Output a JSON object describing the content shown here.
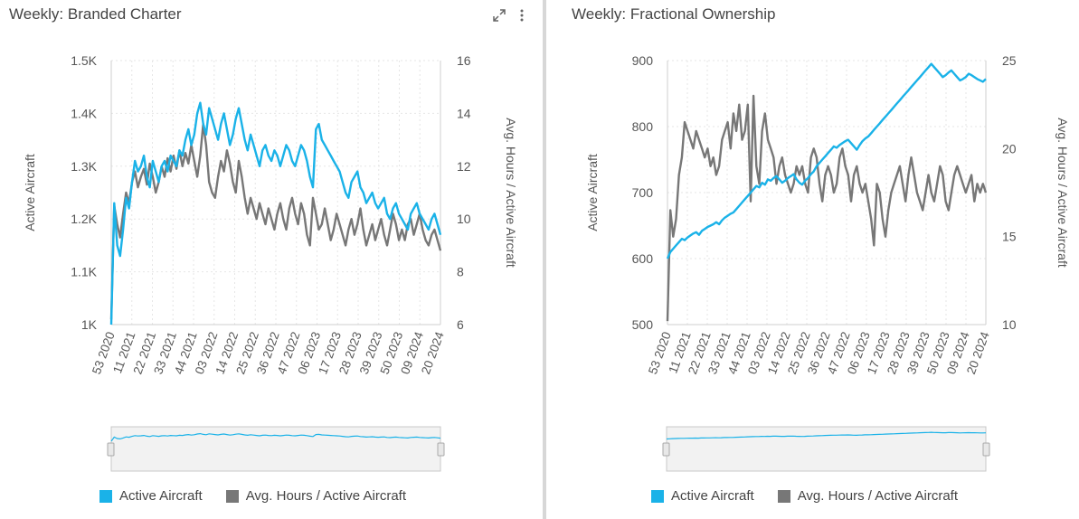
{
  "panels": [
    {
      "title": "Weekly: Branded Charter",
      "tools": {
        "expand_icon": "expand-icon",
        "menu_icon": "more-vert-icon"
      },
      "legend": [
        {
          "label": "Active Aircraft",
          "color": "#1ab2e8"
        },
        {
          "label": "Avg. Hours / Active Aircraft",
          "color": "#777777"
        }
      ]
    },
    {
      "title": "Weekly: Fractional Ownership",
      "legend": [
        {
          "label": "Active Aircraft",
          "color": "#1ab2e8"
        },
        {
          "label": "Avg. Hours / Active Aircraft",
          "color": "#777777"
        }
      ]
    }
  ],
  "chart_data": [
    {
      "type": "line",
      "title": "Weekly: Branded Charter",
      "x_tick_labels": [
        "53 2020",
        "11 2021",
        "22 2021",
        "33 2021",
        "44 2021",
        "03 2022",
        "14 2022",
        "25 2022",
        "36 2022",
        "47 2022",
        "06 2023",
        "17 2023",
        "28 2023",
        "39 2023",
        "50 2023",
        "09 2024",
        "20 2024"
      ],
      "ylabel_left": "Active Aircraft",
      "ylabel_right": "Avg. Hours / Active Aircraft",
      "y_left_ticks": [
        "1K",
        "1.1K",
        "1.2K",
        "1.3K",
        "1.4K",
        "1.5K"
      ],
      "y_right_ticks": [
        "6",
        "8",
        "10",
        "12",
        "14",
        "16"
      ],
      "ylim_left": [
        1000,
        1500
      ],
      "ylim_right": [
        6,
        16
      ],
      "grid": true,
      "legend_position": "bottom",
      "navigator": true,
      "series": [
        {
          "name": "Active Aircraft",
          "axis": "left",
          "color": "#1ab2e8",
          "values": [
            1000,
            1230,
            1150,
            1130,
            1180,
            1240,
            1220,
            1270,
            1310,
            1290,
            1300,
            1320,
            1280,
            1260,
            1310,
            1290,
            1270,
            1300,
            1310,
            1290,
            1320,
            1310,
            1300,
            1330,
            1320,
            1350,
            1370,
            1340,
            1360,
            1400,
            1420,
            1380,
            1360,
            1410,
            1390,
            1370,
            1350,
            1380,
            1400,
            1370,
            1340,
            1360,
            1390,
            1410,
            1380,
            1350,
            1330,
            1360,
            1340,
            1320,
            1300,
            1330,
            1340,
            1320,
            1310,
            1330,
            1320,
            1300,
            1320,
            1340,
            1330,
            1310,
            1300,
            1320,
            1340,
            1330,
            1310,
            1280,
            1260,
            1370,
            1380,
            1350,
            1340,
            1330,
            1320,
            1310,
            1300,
            1290,
            1270,
            1250,
            1240,
            1270,
            1280,
            1290,
            1260,
            1250,
            1230,
            1240,
            1250,
            1230,
            1220,
            1230,
            1240,
            1210,
            1200,
            1220,
            1230,
            1210,
            1200,
            1190,
            1180,
            1210,
            1220,
            1230,
            1210,
            1200,
            1190,
            1180,
            1200,
            1210,
            1190,
            1170
          ]
        },
        {
          "name": "Avg. Hours / Active Aircraft",
          "axis": "right",
          "color": "#777777",
          "values": [
            6.2,
            10.5,
            9.8,
            9.3,
            10.2,
            11.0,
            10.6,
            11.4,
            11.8,
            11.2,
            11.6,
            11.9,
            11.3,
            12.1,
            11.6,
            11.0,
            11.4,
            12.0,
            11.6,
            12.3,
            11.8,
            12.4,
            11.9,
            12.6,
            12.0,
            12.5,
            12.1,
            12.8,
            12.2,
            11.6,
            12.4,
            13.6,
            12.8,
            11.4,
            11.0,
            10.8,
            11.6,
            12.2,
            11.8,
            12.6,
            12.1,
            11.4,
            11.0,
            12.2,
            11.6,
            10.8,
            10.2,
            10.8,
            10.4,
            10.0,
            10.6,
            10.2,
            9.8,
            10.4,
            10.0,
            9.6,
            10.2,
            10.6,
            10.0,
            9.6,
            10.4,
            10.8,
            10.2,
            9.8,
            10.6,
            10.2,
            9.4,
            9.0,
            10.8,
            10.2,
            9.6,
            9.8,
            10.4,
            9.8,
            9.2,
            9.6,
            10.2,
            9.8,
            9.4,
            9.0,
            9.6,
            10.0,
            9.4,
            9.8,
            10.4,
            9.6,
            9.0,
            9.4,
            9.8,
            9.2,
            9.6,
            10.0,
            9.4,
            9.0,
            9.6,
            10.2,
            9.8,
            9.2,
            9.6,
            9.2,
            9.8,
            10.0,
            9.4,
            9.8,
            10.2,
            9.6,
            9.2,
            9.0,
            9.4,
            9.6,
            9.2,
            8.8
          ]
        }
      ]
    },
    {
      "type": "line",
      "title": "Weekly: Fractional Ownership",
      "x_tick_labels": [
        "53 2020",
        "11 2021",
        "22 2021",
        "33 2021",
        "44 2021",
        "03 2022",
        "14 2022",
        "25 2022",
        "36 2022",
        "47 2022",
        "06 2023",
        "17 2023",
        "28 2023",
        "39 2023",
        "50 2023",
        "09 2024",
        "20 2024"
      ],
      "ylabel_left": "Active Aircraft",
      "ylabel_right": "Avg. Hours / Active Aircraft",
      "y_left_ticks": [
        "500",
        "600",
        "700",
        "800",
        "900"
      ],
      "y_right_ticks": [
        "10",
        "15",
        "20",
        "25"
      ],
      "ylim_left": [
        500,
        900
      ],
      "ylim_right": [
        10,
        25
      ],
      "grid": true,
      "legend_position": "bottom",
      "navigator": true,
      "series": [
        {
          "name": "Active Aircraft",
          "axis": "left",
          "color": "#1ab2e8",
          "values": [
            600,
            610,
            615,
            620,
            625,
            630,
            628,
            632,
            635,
            638,
            640,
            636,
            642,
            645,
            648,
            650,
            652,
            655,
            652,
            658,
            662,
            665,
            668,
            670,
            675,
            680,
            685,
            690,
            695,
            700,
            705,
            710,
            708,
            715,
            712,
            720,
            718,
            722,
            725,
            720,
            715,
            718,
            722,
            725,
            728,
            720,
            715,
            712,
            718,
            722,
            728,
            732,
            740,
            745,
            750,
            755,
            760,
            765,
            770,
            768,
            772,
            775,
            778,
            780,
            775,
            770,
            765,
            772,
            778,
            782,
            785,
            790,
            795,
            800,
            805,
            810,
            815,
            820,
            825,
            830,
            835,
            840,
            845,
            850,
            855,
            860,
            865,
            870,
            875,
            880,
            885,
            890,
            895,
            890,
            885,
            880,
            875,
            878,
            882,
            885,
            880,
            875,
            870,
            872,
            875,
            880,
            878,
            875,
            872,
            870,
            868,
            872
          ]
        },
        {
          "name": "Avg. Hours / Active Aircraft",
          "axis": "right",
          "color": "#777777",
          "values": [
            10.2,
            16.5,
            15.0,
            16.0,
            18.5,
            19.5,
            21.5,
            21.0,
            20.5,
            20.0,
            21.0,
            20.5,
            20.0,
            19.5,
            20.0,
            19.0,
            19.5,
            18.5,
            19.0,
            20.5,
            21.0,
            21.5,
            20.0,
            22.0,
            21.0,
            22.5,
            20.5,
            21.0,
            22.5,
            17.0,
            23.0,
            19.0,
            18.0,
            21.0,
            22.0,
            20.5,
            20.0,
            19.5,
            18.0,
            19.0,
            19.5,
            18.5,
            18.0,
            17.5,
            18.0,
            19.0,
            18.5,
            19.0,
            18.0,
            17.5,
            19.5,
            20.0,
            19.5,
            18.0,
            17.0,
            18.5,
            19.0,
            18.5,
            17.5,
            18.0,
            19.5,
            20.0,
            19.0,
            18.5,
            17.0,
            18.5,
            19.0,
            18.0,
            17.5,
            18.0,
            17.0,
            16.0,
            14.5,
            18.0,
            17.5,
            16.0,
            15.0,
            16.5,
            17.5,
            18.0,
            18.5,
            19.0,
            18.0,
            17.0,
            18.5,
            19.5,
            18.5,
            17.5,
            17.0,
            16.5,
            17.5,
            18.5,
            17.5,
            17.0,
            18.0,
            19.0,
            18.5,
            17.0,
            16.5,
            17.5,
            18.5,
            19.0,
            18.5,
            18.0,
            17.5,
            18.0,
            18.5,
            17.0,
            18.0,
            17.5,
            18.0,
            17.5
          ]
        }
      ]
    }
  ]
}
